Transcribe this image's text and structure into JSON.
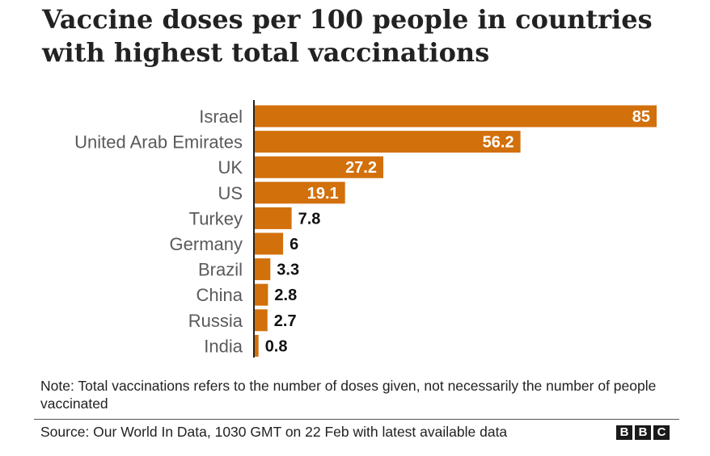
{
  "chart_data": {
    "type": "bar",
    "orientation": "horizontal",
    "title": "Vaccine doses per 100 people in countries with highest total vaccinations",
    "categories": [
      "Israel",
      "United Arab Emirates",
      "UK",
      "US",
      "Turkey",
      "Germany",
      "Brazil",
      "China",
      "Russia",
      "India"
    ],
    "values": [
      85,
      56.2,
      27.2,
      19.1,
      7.8,
      6,
      3.3,
      2.8,
      2.7,
      0.8
    ],
    "value_labels": [
      "85",
      "56.2",
      "27.2",
      "19.1",
      "7.8",
      "6",
      "3.3",
      "2.8",
      "2.7",
      "0.8"
    ],
    "xlim": [
      0,
      85
    ],
    "grid": false,
    "legend": "none",
    "bar_color": "#d2700b"
  },
  "note": "Note: Total vaccinations refers to the number of doses given, not necessarily the number of people vaccinated",
  "source": "Source: Our World In Data, 1030 GMT on 22 Feb with latest available data",
  "logo": {
    "letters": [
      "B",
      "B",
      "C"
    ]
  },
  "colors": {
    "bar": "#d2700b",
    "text": "#222222",
    "category_text": "#5a5a5a",
    "value_inside": "#ffffff",
    "value_outside": "#111111"
  }
}
